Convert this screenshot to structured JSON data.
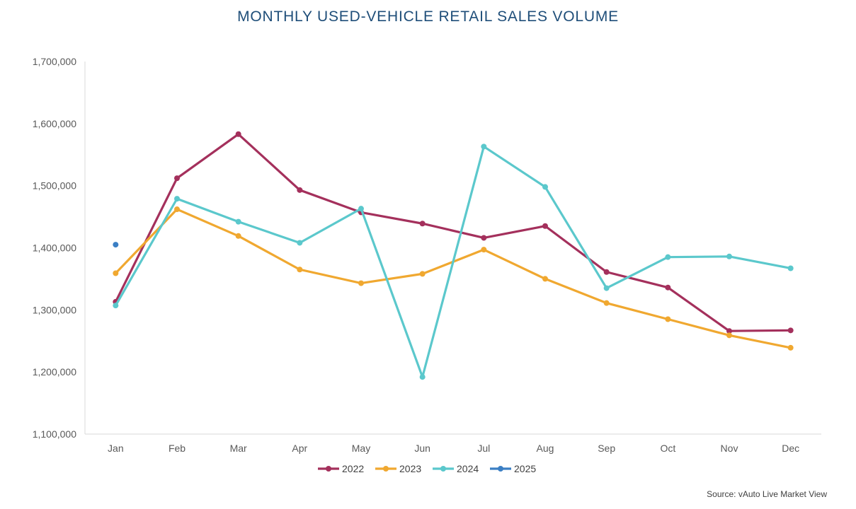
{
  "chart_data": {
    "type": "line",
    "title": "MONTHLY USED-VEHICLE RETAIL SALES VOLUME",
    "categories": [
      "Jan",
      "Feb",
      "Mar",
      "Apr",
      "May",
      "Jun",
      "Jul",
      "Aug",
      "Sep",
      "Oct",
      "Nov",
      "Dec"
    ],
    "ylim": [
      1100000,
      1700000
    ],
    "yticks": [
      1100000,
      1200000,
      1300000,
      1400000,
      1500000,
      1600000,
      1700000
    ],
    "ytick_labels": [
      "1,100,000",
      "1,200,000",
      "1,300,000",
      "1,400,000",
      "1,500,000",
      "1,600,000",
      "1,700,000"
    ],
    "grid": false,
    "legend_position": "bottom",
    "series": [
      {
        "name": "2022",
        "color": "#a4305c",
        "values": [
          1313000,
          1512000,
          1583000,
          1493000,
          1457000,
          1439000,
          1416000,
          1435000,
          1361000,
          1336000,
          1266000,
          1267000
        ]
      },
      {
        "name": "2023",
        "color": "#f0a830",
        "values": [
          1359000,
          1462000,
          1419000,
          1365000,
          1343000,
          1358000,
          1397000,
          1350000,
          1311000,
          1285000,
          1259000,
          1239000
        ]
      },
      {
        "name": "2024",
        "color": "#5bc8cc",
        "values": [
          1307000,
          1479000,
          1442000,
          1408000,
          1463000,
          1192000,
          1563000,
          1498000,
          1335000,
          1385000,
          1386000,
          1367000
        ]
      },
      {
        "name": "2025",
        "color": "#3b7fc4",
        "values": [
          1405000,
          null,
          null,
          null,
          null,
          null,
          null,
          null,
          null,
          null,
          null,
          null
        ]
      }
    ],
    "source": "Source: vAuto Live Market View"
  }
}
